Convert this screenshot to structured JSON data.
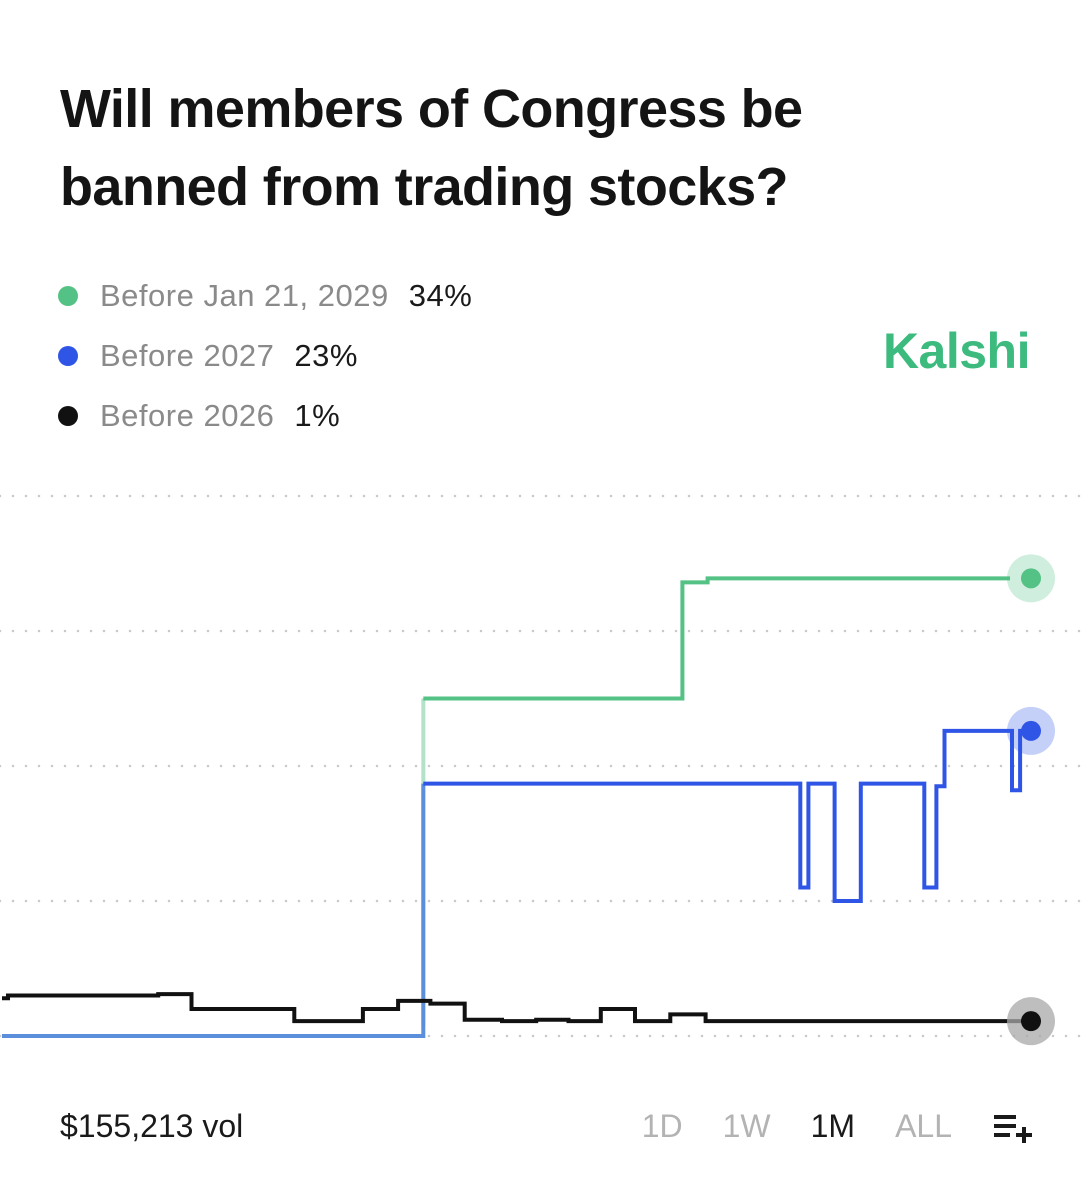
{
  "title": "Will members of Congress be banned from trading stocks?",
  "brand": {
    "name": "Kalshi",
    "color": "#3dbb7f"
  },
  "legend": [
    {
      "label": "Before Jan 21, 2029",
      "value": "34%",
      "color": "#54c185"
    },
    {
      "label": "Before 2027",
      "value": "23%",
      "color": "#2f55e6"
    },
    {
      "label": "Before 2026",
      "value": "1%",
      "color": "#111111"
    }
  ],
  "footer": {
    "volume": "$155,213 vol",
    "ranges": [
      "1D",
      "1W",
      "1M",
      "ALL"
    ],
    "active_range": "1M",
    "menu_icon": "list-add-icon"
  },
  "chart_data": {
    "type": "line",
    "step": true,
    "y_unit": "%",
    "ylim": [
      0,
      40
    ],
    "gridlines": [
      0,
      10,
      20,
      30,
      40
    ],
    "grid": true,
    "x_domain": [
      0,
      100
    ],
    "series": [
      {
        "name": "Before Jan 21, 2029",
        "color": "#54c185",
        "start_x": 41.8,
        "points": [
          [
            41.8,
            25
          ],
          [
            67.5,
            25
          ],
          [
            67.5,
            33.6
          ],
          [
            70,
            33.6
          ],
          [
            70,
            33.9
          ],
          [
            100,
            33.9
          ]
        ]
      },
      {
        "name": "Before 2027",
        "color": "#2f55e6",
        "color_early": "#5b8fdc",
        "early_until_x": 41.8,
        "points": [
          [
            0,
            0
          ],
          [
            41.8,
            0
          ],
          [
            41.8,
            18.7
          ],
          [
            79.2,
            18.7
          ],
          [
            79.2,
            11
          ],
          [
            80,
            11
          ],
          [
            80,
            18.7
          ],
          [
            82.6,
            18.7
          ],
          [
            82.6,
            10
          ],
          [
            85.2,
            10
          ],
          [
            85.2,
            18.7
          ],
          [
            91.5,
            18.7
          ],
          [
            91.5,
            11
          ],
          [
            92.7,
            11
          ],
          [
            92.7,
            18.5
          ],
          [
            93.5,
            18.5
          ],
          [
            93.5,
            22.6
          ],
          [
            100.2,
            22.6
          ],
          [
            100.2,
            18.2
          ],
          [
            101,
            18.2
          ],
          [
            101,
            22.6
          ],
          [
            102.2,
            22.6
          ]
        ]
      },
      {
        "name": "Before 2026",
        "color": "#111111",
        "points": [
          [
            0,
            2.8
          ],
          [
            0.6,
            2.8
          ],
          [
            0.6,
            3
          ],
          [
            15.5,
            3
          ],
          [
            15.5,
            3.1
          ],
          [
            18.8,
            3.1
          ],
          [
            18.8,
            2
          ],
          [
            29,
            2
          ],
          [
            29,
            1.1
          ],
          [
            35.8,
            1.1
          ],
          [
            35.8,
            2
          ],
          [
            39.3,
            2
          ],
          [
            39.3,
            2.6
          ],
          [
            42.5,
            2.6
          ],
          [
            42.5,
            2.4
          ],
          [
            45.9,
            2.4
          ],
          [
            45.9,
            1.2
          ],
          [
            49.6,
            1.2
          ],
          [
            49.6,
            1.1
          ],
          [
            53,
            1.1
          ],
          [
            53,
            1.2
          ],
          [
            56.2,
            1.2
          ],
          [
            56.2,
            1.1
          ],
          [
            59.4,
            1.1
          ],
          [
            59.4,
            2
          ],
          [
            62.8,
            2
          ],
          [
            62.8,
            1.1
          ],
          [
            66.3,
            1.1
          ],
          [
            66.3,
            1.6
          ],
          [
            69.8,
            1.6
          ],
          [
            69.8,
            1.1
          ],
          [
            102.2,
            1.1
          ]
        ]
      }
    ]
  }
}
